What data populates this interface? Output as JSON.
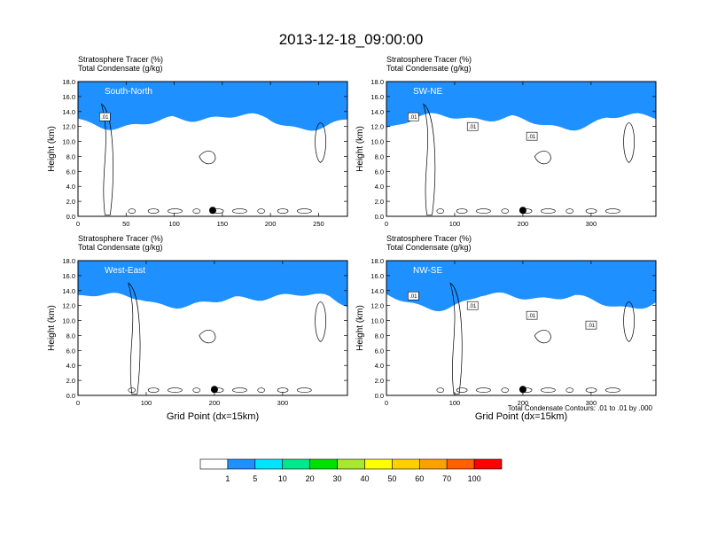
{
  "title": "2013-12-18_09:00:00",
  "footnote": "Total Condensate Contours: .01 to .01 by .000",
  "colorbar": {
    "colors": [
      "#ffffff",
      "#1e90ff",
      "#00e5ff",
      "#00e88c",
      "#00e000",
      "#a8e830",
      "#ffff00",
      "#ffd000",
      "#ffa000",
      "#ff6000",
      "#ff0000"
    ],
    "labels": [
      "1",
      "5",
      "10",
      "20",
      "30",
      "40",
      "50",
      "60",
      "70",
      "100"
    ]
  },
  "panels": [
    {
      "id": "south-north",
      "field_line1": "Stratosphere Tracer",
      "unit1": "(%)",
      "field_line2": "Total Condensate",
      "unit2": "(g/kg)",
      "section_label": "South-North",
      "ylabel": "Height (km)",
      "xlabel": "",
      "xlim": [
        0,
        280
      ],
      "ylim": [
        0,
        18
      ],
      "xticks": [
        "0",
        "50",
        "100",
        "150",
        "200",
        "250"
      ],
      "yticks": [
        "0.0",
        "2.0",
        "4.0",
        "6.0",
        "8.0",
        "10.0",
        "12.0",
        "14.0",
        "16.0",
        "18.0"
      ],
      "contour_labels": [
        ".01"
      ],
      "marker_x": 140
    },
    {
      "id": "sw-ne",
      "field_line1": "Stratosphere Tracer",
      "unit1": "(%)",
      "field_line2": "Total Condensate",
      "unit2": "(g/kg)",
      "section_label": "SW-NE",
      "ylabel": "Height (km)",
      "xlabel": "",
      "xlim": [
        0,
        395
      ],
      "ylim": [
        0,
        18
      ],
      "xticks": [
        "0",
        "100",
        "200",
        "300"
      ],
      "yticks": [
        "0.0",
        "2.0",
        "4.0",
        "6.0",
        "8.0",
        "10.0",
        "12.0",
        "14.0",
        "16.0",
        "18.0"
      ],
      "contour_labels": [
        ".01",
        ".01",
        ".01"
      ],
      "marker_x": 200
    },
    {
      "id": "west-east",
      "field_line1": "Stratosphere Tracer",
      "unit1": "(%)",
      "field_line2": "Total Condensate",
      "unit2": "(g/kg)",
      "section_label": "West-East",
      "ylabel": "Height (km)",
      "xlabel": "Grid Point (dx=15km)",
      "xlim": [
        0,
        395
      ],
      "ylim": [
        0,
        18
      ],
      "xticks": [
        "0",
        "100",
        "200",
        "300"
      ],
      "yticks": [
        "0.0",
        "2.0",
        "4.0",
        "6.0",
        "8.0",
        "10.0",
        "12.0",
        "14.0",
        "16.0",
        "18.0"
      ],
      "contour_labels": [],
      "marker_x": 200
    },
    {
      "id": "nw-se",
      "field_line1": "Stratosphere Tracer",
      "unit1": "(%)",
      "field_line2": "Total Condensate",
      "unit2": "(g/kg)",
      "section_label": "NW-SE",
      "ylabel": "Height (km)",
      "xlabel": "Grid Point (dx=15km)",
      "xlim": [
        0,
        395
      ],
      "ylim": [
        0,
        18
      ],
      "xticks": [
        "0",
        "100",
        "200",
        "300"
      ],
      "yticks": [
        "0.0",
        "2.0",
        "4.0",
        "6.0",
        "8.0",
        "10.0",
        "12.0",
        "14.0",
        "16.0",
        "18.0"
      ],
      "contour_labels": [
        ".01",
        ".01",
        ".01",
        ".01"
      ],
      "marker_x": 200
    }
  ],
  "chart_data": [
    {
      "type": "heatmap",
      "title": "South-North",
      "xlabel": "",
      "ylabel": "Height (km)",
      "xlim": [
        0,
        280
      ],
      "ylim": [
        0,
        18
      ],
      "colorbar_levels": [
        1,
        5,
        10,
        20,
        30,
        40,
        50,
        60,
        70,
        100
      ],
      "tracer_top_km": [
        18,
        16.3
      ],
      "grid": false
    },
    {
      "type": "heatmap",
      "title": "SW-NE",
      "xlabel": "",
      "ylabel": "Height (km)",
      "xlim": [
        0,
        395
      ],
      "ylim": [
        0,
        18
      ],
      "colorbar_levels": [
        1,
        5,
        10,
        20,
        30,
        40,
        50,
        60,
        70,
        100
      ],
      "tracer_top_km": [
        18,
        16.3
      ],
      "grid": false
    },
    {
      "type": "heatmap",
      "title": "West-East",
      "xlabel": "Grid Point (dx=15km)",
      "ylabel": "Height (km)",
      "xlim": [
        0,
        395
      ],
      "ylim": [
        0,
        18
      ],
      "colorbar_levels": [
        1,
        5,
        10,
        20,
        30,
        40,
        50,
        60,
        70,
        100
      ],
      "tracer_top_km": [
        18,
        16.3
      ],
      "grid": false
    },
    {
      "type": "heatmap",
      "title": "NW-SE",
      "xlabel": "Grid Point (dx=15km)",
      "ylabel": "Height (km)",
      "xlim": [
        0,
        395
      ],
      "ylim": [
        0,
        18
      ],
      "colorbar_levels": [
        1,
        5,
        10,
        20,
        30,
        40,
        50,
        60,
        70,
        100
      ],
      "tracer_top_km": [
        18,
        16.3
      ],
      "grid": false
    }
  ]
}
